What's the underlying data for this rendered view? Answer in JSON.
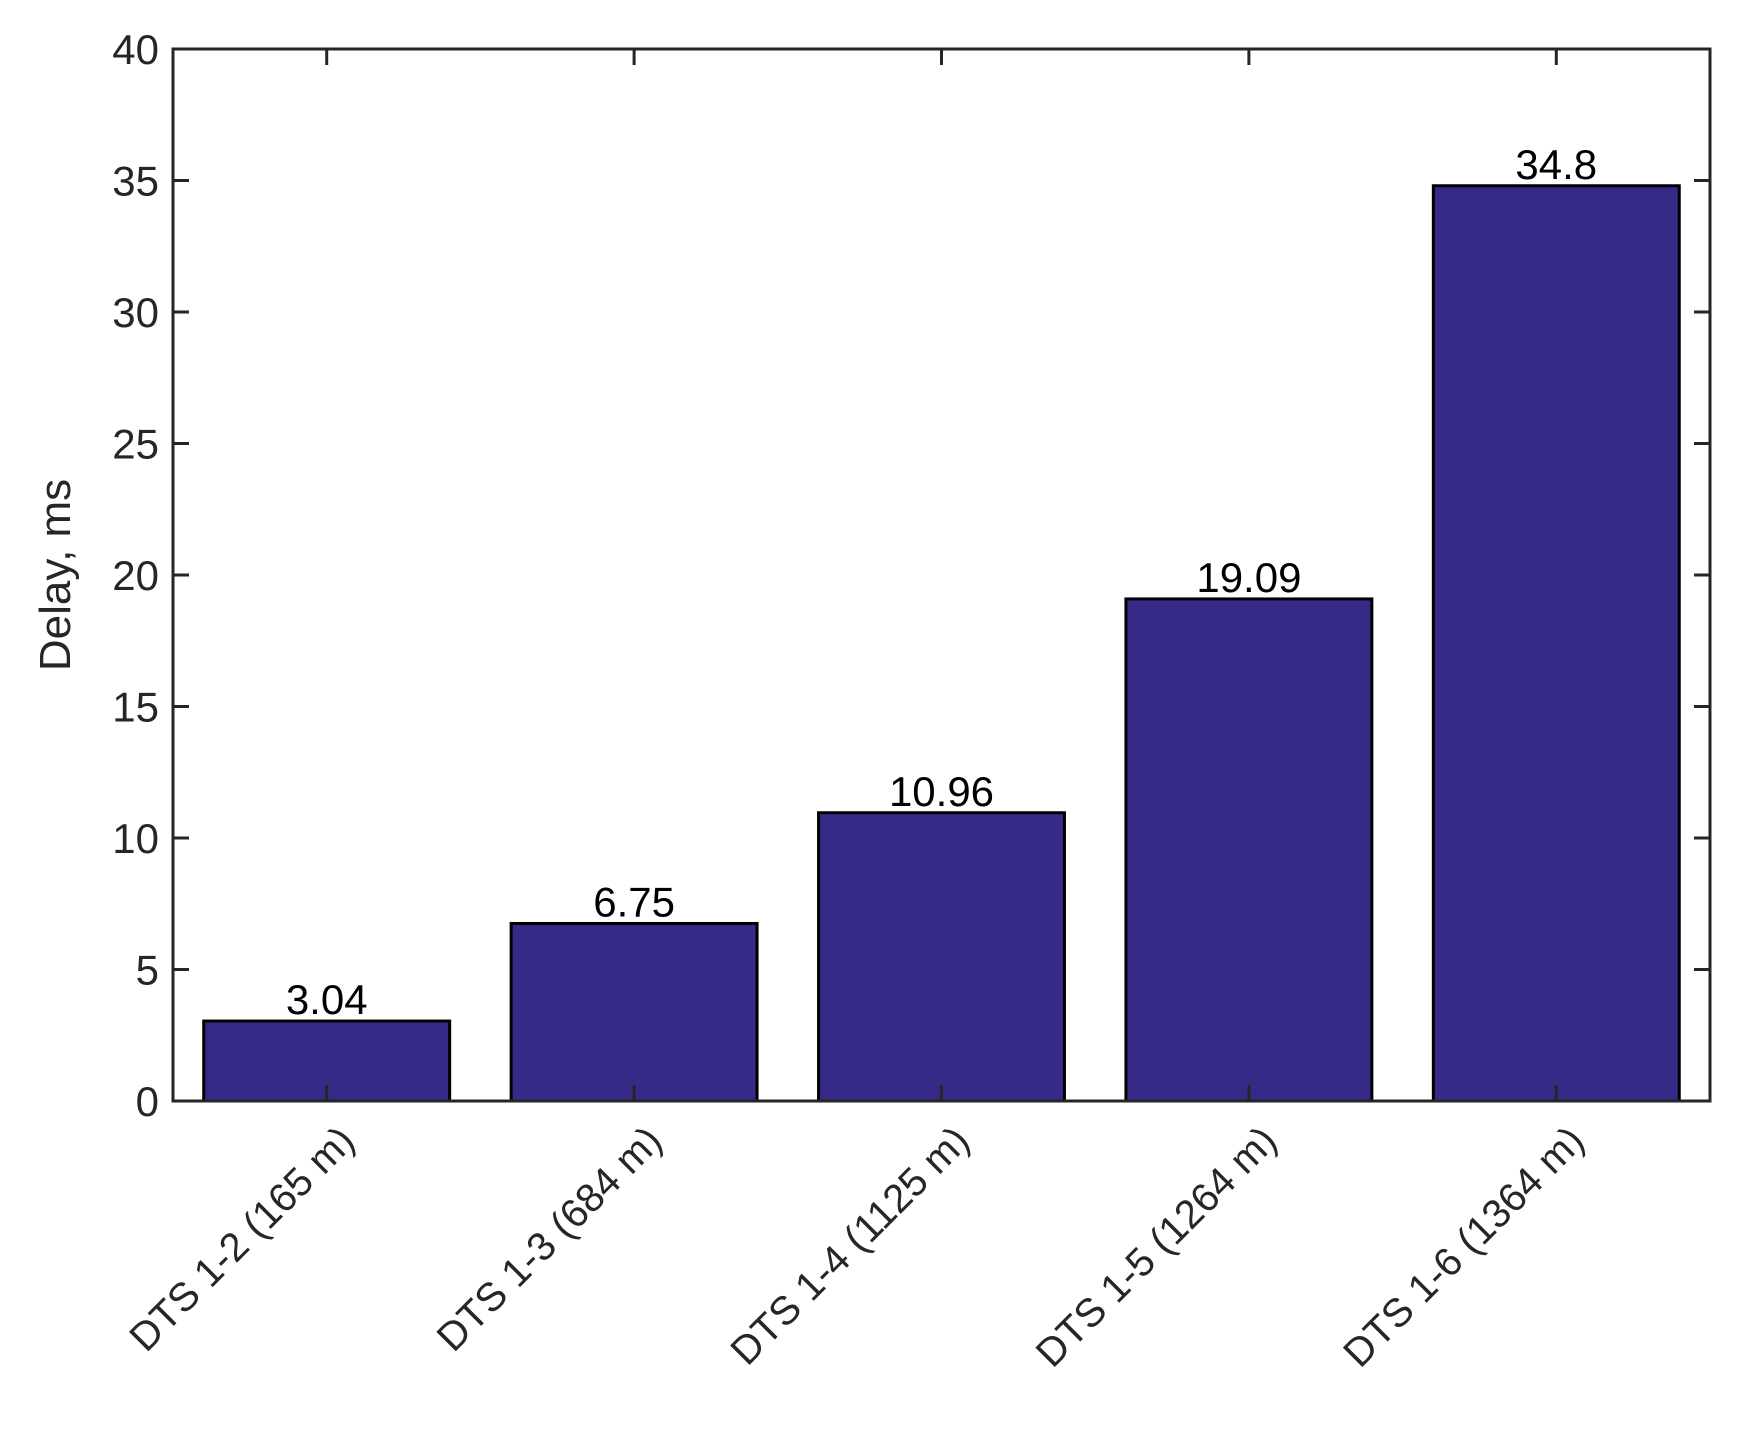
{
  "chart_data": {
    "type": "bar",
    "title": "",
    "xlabel": "",
    "ylabel": "Delay, ms",
    "ylim": [
      0,
      40
    ],
    "yticks": [
      0,
      5,
      10,
      15,
      20,
      25,
      30,
      35,
      40
    ],
    "categories": [
      "DTS 1-2 (165 m)",
      "DTS 1-3 (684 m)",
      "DTS 1-4 (1125 m)",
      "DTS 1-5 (1264 m)",
      "DTS 1-6 (1364 m)"
    ],
    "values": [
      3.04,
      6.75,
      10.96,
      19.09,
      34.8
    ],
    "data_labels": [
      "3.04",
      "6.75",
      "10.96",
      "19.09",
      "34.8"
    ],
    "grid": false,
    "legend": "none",
    "bar_color": "#352A87",
    "bar_edge_color": "#000000",
    "axis_color": "#262626"
  }
}
